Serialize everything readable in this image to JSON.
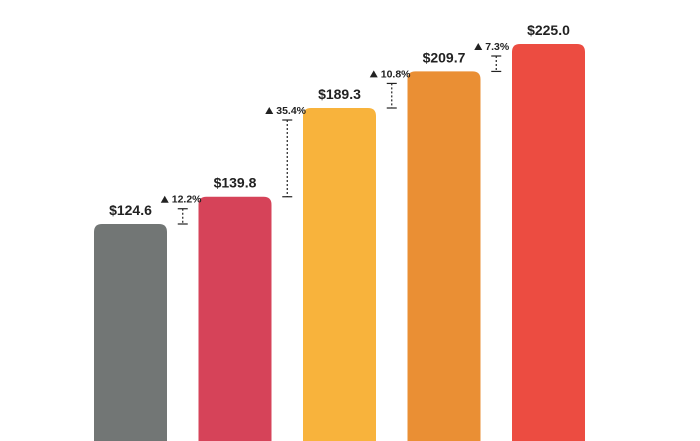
{
  "chart_data": {
    "type": "bar",
    "title": "",
    "xlabel": "",
    "ylabel": "",
    "ylim": [
      0,
      240
    ],
    "grid": false,
    "legend": "none",
    "categories": [
      "",
      "",
      "",
      "",
      ""
    ],
    "values": [
      124.6,
      139.8,
      189.3,
      209.7,
      225.0
    ],
    "value_labels": [
      "$124.6",
      "$139.8",
      "$189.3",
      "$209.7",
      "$225.0"
    ],
    "colors": [
      "#727675",
      "#d64359",
      "#f8b33c",
      "#ea8f34",
      "#ec4c41"
    ],
    "annotations": [
      {
        "from": 0,
        "to": 1,
        "label": "12.2%"
      },
      {
        "from": 1,
        "to": 2,
        "label": "35.4%"
      },
      {
        "from": 2,
        "to": 3,
        "label": "10.8%"
      },
      {
        "from": 3,
        "to": 4,
        "label": "7.3%"
      }
    ]
  }
}
